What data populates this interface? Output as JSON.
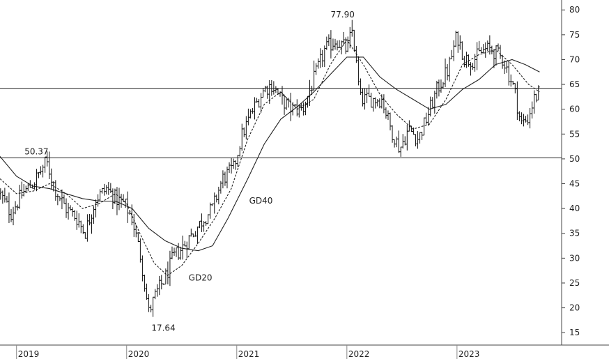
{
  "chart_data": {
    "type": "ohlc-bar",
    "title": "",
    "xlabel": "",
    "ylabel": "",
    "ylim": [
      12.5,
      82
    ],
    "xlim": [
      2018.85,
      2023.95
    ],
    "grid": false,
    "y_ticks": [
      80,
      75,
      70,
      65,
      60,
      55,
      50,
      45,
      40,
      35,
      30,
      25,
      20,
      15
    ],
    "x_ticks": [
      {
        "label": "2019",
        "x": 2019.0
      },
      {
        "label": "2020",
        "x": 2020.0
      },
      {
        "label": "2021",
        "x": 2021.0
      },
      {
        "label": "2022",
        "x": 2022.0
      },
      {
        "label": "2023",
        "x": 2023.0
      }
    ],
    "horizontal_lines": [
      {
        "y": 64.2,
        "style": "solid"
      },
      {
        "y": 50.2,
        "style": "solid"
      }
    ],
    "price_anchors": [
      [
        2018.85,
        43
      ],
      [
        2018.95,
        39
      ],
      [
        2019.05,
        43
      ],
      [
        2019.15,
        45
      ],
      [
        2019.27,
        49.5
      ],
      [
        2019.35,
        44
      ],
      [
        2019.45,
        40
      ],
      [
        2019.55,
        38
      ],
      [
        2019.62,
        35
      ],
      [
        2019.72,
        42
      ],
      [
        2019.82,
        44
      ],
      [
        2019.9,
        42
      ],
      [
        2019.98,
        41
      ],
      [
        2020.05,
        38
      ],
      [
        2020.13,
        30
      ],
      [
        2020.2,
        19
      ],
      [
        2020.27,
        23
      ],
      [
        2020.35,
        26
      ],
      [
        2020.42,
        30
      ],
      [
        2020.5,
        32
      ],
      [
        2020.6,
        35
      ],
      [
        2020.7,
        38
      ],
      [
        2020.78,
        40
      ],
      [
        2020.87,
        46
      ],
      [
        2020.97,
        48
      ],
      [
        2021.05,
        55
      ],
      [
        2021.15,
        60
      ],
      [
        2021.25,
        64
      ],
      [
        2021.32,
        65
      ],
      [
        2021.4,
        62
      ],
      [
        2021.5,
        60
      ],
      [
        2021.6,
        60
      ],
      [
        2021.7,
        66
      ],
      [
        2021.8,
        72
      ],
      [
        2021.9,
        74
      ],
      [
        2022.0,
        72
      ],
      [
        2022.05,
        76
      ],
      [
        2022.12,
        62
      ],
      [
        2022.22,
        62
      ],
      [
        2022.32,
        62
      ],
      [
        2022.4,
        56
      ],
      [
        2022.48,
        52
      ],
      [
        2022.56,
        56
      ],
      [
        2022.65,
        54
      ],
      [
        2022.72,
        58
      ],
      [
        2022.82,
        64
      ],
      [
        2022.92,
        68
      ],
      [
        2023.0,
        75
      ],
      [
        2023.07,
        70
      ],
      [
        2023.15,
        70
      ],
      [
        2023.25,
        72
      ],
      [
        2023.32,
        72
      ],
      [
        2023.42,
        70
      ],
      [
        2023.52,
        64
      ],
      [
        2023.58,
        57
      ],
      [
        2023.64,
        58
      ],
      [
        2023.7,
        62
      ],
      [
        2023.75,
        63.5
      ]
    ],
    "series": [
      {
        "name": "GD20",
        "style": "dashed",
        "values": [
          [
            2018.85,
            46
          ],
          [
            2019.0,
            43
          ],
          [
            2019.15,
            43.5
          ],
          [
            2019.3,
            45
          ],
          [
            2019.45,
            43
          ],
          [
            2019.6,
            40
          ],
          [
            2019.75,
            41
          ],
          [
            2019.9,
            43
          ],
          [
            2020.0,
            41
          ],
          [
            2020.12,
            35
          ],
          [
            2020.25,
            29
          ],
          [
            2020.37,
            26.5
          ],
          [
            2020.5,
            28.5
          ],
          [
            2020.65,
            33
          ],
          [
            2020.8,
            38
          ],
          [
            2020.95,
            44
          ],
          [
            2021.1,
            54
          ],
          [
            2021.25,
            61
          ],
          [
            2021.4,
            63.5
          ],
          [
            2021.55,
            60
          ],
          [
            2021.7,
            62
          ],
          [
            2021.85,
            69
          ],
          [
            2022.0,
            74
          ],
          [
            2022.15,
            69
          ],
          [
            2022.3,
            63
          ],
          [
            2022.45,
            59
          ],
          [
            2022.6,
            56
          ],
          [
            2022.75,
            57
          ],
          [
            2022.9,
            62
          ],
          [
            2023.05,
            69
          ],
          [
            2023.2,
            71
          ],
          [
            2023.35,
            72
          ],
          [
            2023.5,
            69
          ],
          [
            2023.65,
            65
          ],
          [
            2023.75,
            63.5
          ]
        ]
      },
      {
        "name": "GD40",
        "style": "solid",
        "values": [
          [
            2018.85,
            50.5
          ],
          [
            2019.0,
            46.5
          ],
          [
            2019.15,
            44.5
          ],
          [
            2019.3,
            44
          ],
          [
            2019.45,
            43
          ],
          [
            2019.6,
            42
          ],
          [
            2019.75,
            41.5
          ],
          [
            2019.9,
            41.5
          ],
          [
            2020.05,
            40
          ],
          [
            2020.2,
            36
          ],
          [
            2020.35,
            33.5
          ],
          [
            2020.5,
            32
          ],
          [
            2020.65,
            31.5
          ],
          [
            2020.78,
            32.5
          ],
          [
            2020.92,
            38
          ],
          [
            2021.1,
            46
          ],
          [
            2021.25,
            53
          ],
          [
            2021.4,
            58
          ],
          [
            2021.55,
            60.5
          ],
          [
            2021.7,
            63.5
          ],
          [
            2021.85,
            67
          ],
          [
            2022.0,
            70.5
          ],
          [
            2022.15,
            70.5
          ],
          [
            2022.3,
            66.5
          ],
          [
            2022.45,
            64
          ],
          [
            2022.6,
            62
          ],
          [
            2022.75,
            60
          ],
          [
            2022.9,
            61
          ],
          [
            2023.05,
            64
          ],
          [
            2023.2,
            66
          ],
          [
            2023.35,
            69
          ],
          [
            2023.5,
            70
          ],
          [
            2023.62,
            69
          ],
          [
            2023.75,
            67.5
          ]
        ]
      }
    ],
    "annotations": [
      {
        "text": "50.37",
        "x": 2019.27,
        "y": 50.37,
        "anchor": "above"
      },
      {
        "text": "77.90",
        "x": 2022.05,
        "y": 77.9,
        "anchor": "above"
      },
      {
        "text": "17.64",
        "x": 2020.2,
        "y": 17.64,
        "anchor": "below"
      },
      {
        "text": "GD40",
        "x": 2021.1,
        "y": 41,
        "anchor": "right"
      },
      {
        "text": "GD20",
        "x": 2020.55,
        "y": 25.5,
        "anchor": "right"
      }
    ]
  }
}
